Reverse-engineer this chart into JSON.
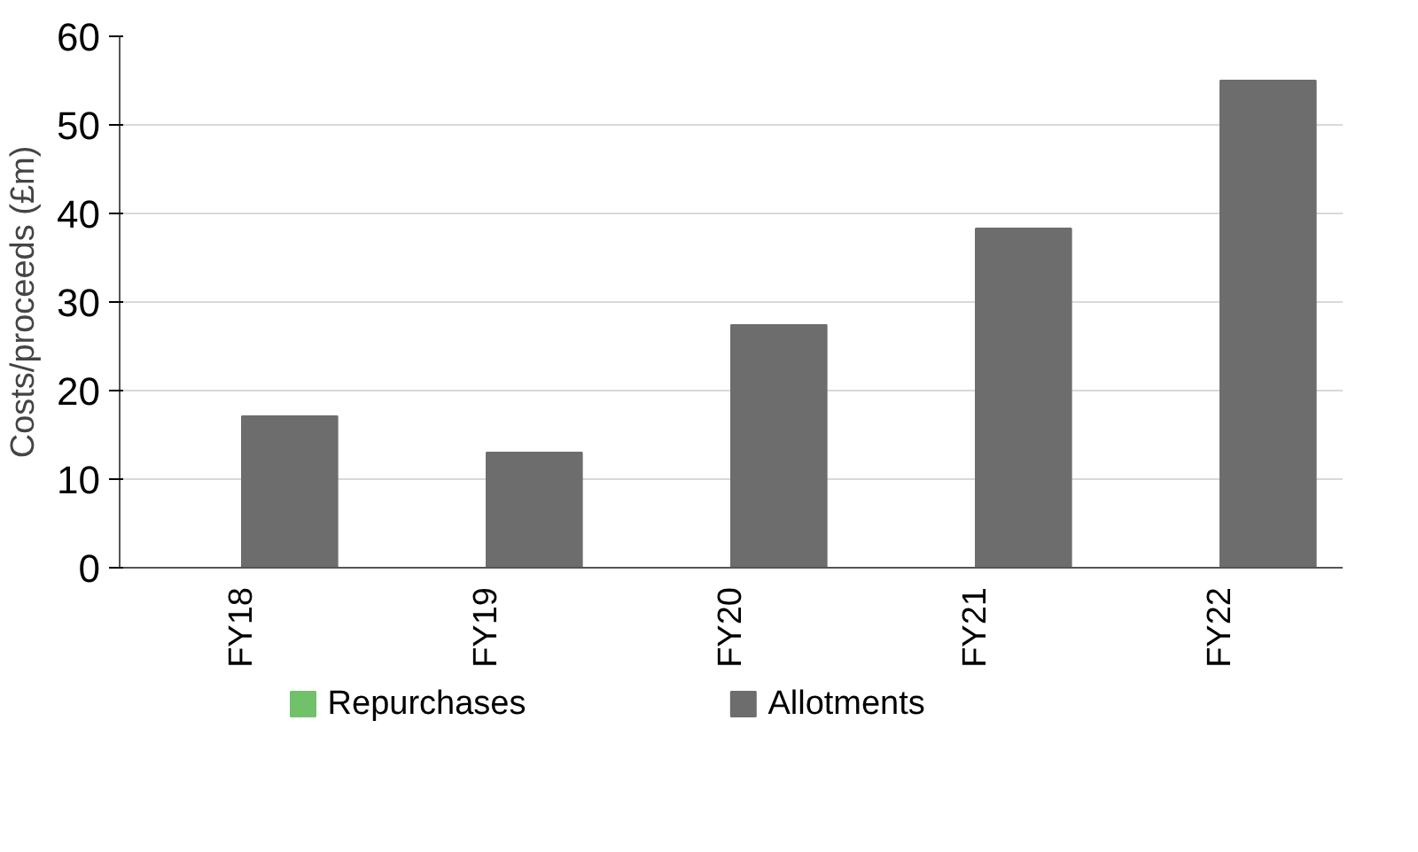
{
  "chart_data": {
    "type": "bar",
    "ylabel": "Costs/proceeds (£m)",
    "categories": [
      "FY18",
      "FY19",
      "FY20",
      "FY21",
      "FY22"
    ],
    "series": [
      {
        "name": "Repurchases",
        "color": "#70c16a",
        "values": [
          0,
          0,
          0,
          0,
          0
        ]
      },
      {
        "name": "Allotments",
        "color": "#6d6d6d",
        "values": [
          17.1,
          13.0,
          27.4,
          38.3,
          55.0
        ]
      }
    ],
    "ylim": [
      0,
      60
    ],
    "yticks": [
      0,
      10,
      20,
      30,
      40,
      50,
      60
    ],
    "grid": "y",
    "legend": "bottom"
  }
}
